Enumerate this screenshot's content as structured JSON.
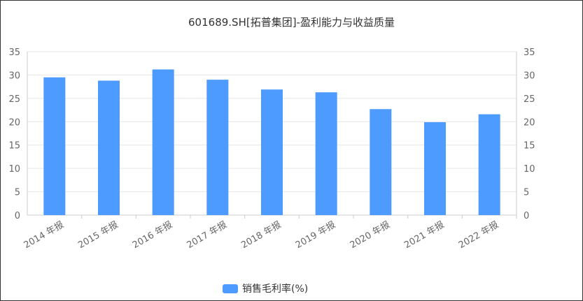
{
  "chart_data": {
    "type": "bar",
    "title": "601689.SH[拓普集团]-盈利能力与收益质量",
    "categories": [
      "2014 年报",
      "2015 年报",
      "2016 年报",
      "2017 年报",
      "2018 年报",
      "2019 年报",
      "2020 年报",
      "2021 年报",
      "2022 年报"
    ],
    "series": [
      {
        "name": "销售毛利率(%)",
        "values": [
          29.5,
          28.8,
          31.2,
          29.0,
          26.9,
          26.3,
          22.7,
          19.9,
          21.6
        ],
        "color": "#4e9bff"
      }
    ],
    "ylim": [
      0,
      35
    ],
    "yticks": [
      0,
      5,
      10,
      15,
      20,
      25,
      30,
      35
    ],
    "y_axis_sides": [
      "left",
      "right"
    ],
    "grid": true,
    "legend_position": "bottom-center"
  }
}
